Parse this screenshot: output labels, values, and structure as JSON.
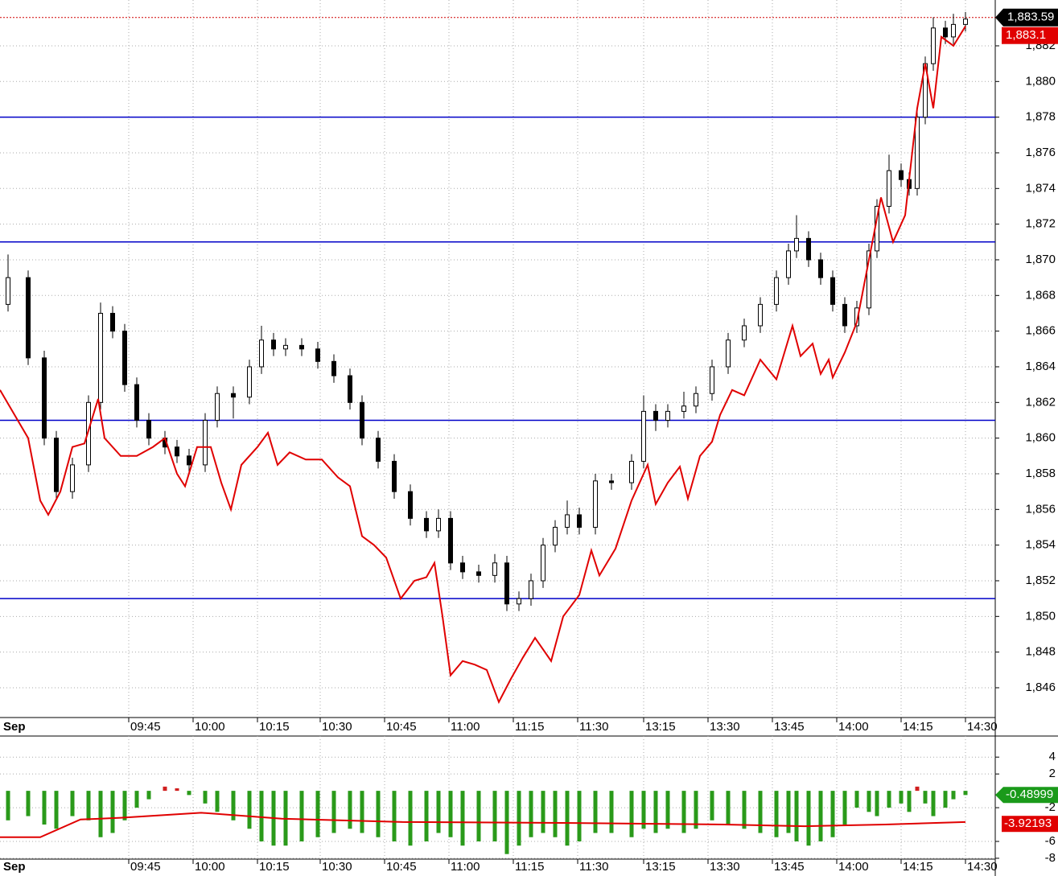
{
  "chart_data": [
    {
      "type": "candlestick",
      "date_label": "Sep",
      "x": [
        2,
        7,
        11,
        14,
        18,
        22,
        25,
        28,
        31,
        34,
        37,
        41,
        44,
        47,
        51,
        54,
        58,
        62,
        65,
        68,
        71,
        75,
        79,
        83,
        87,
        90,
        94,
        98,
        102,
        106,
        109,
        112,
        115,
        119,
        123,
        126,
        129,
        132,
        135,
        138,
        141,
        144,
        148,
        152,
        157,
        160,
        163,
        166,
        170,
        173,
        177,
        181,
        185,
        189,
        193,
        196,
        198,
        201,
        204,
        207,
        210,
        213,
        216,
        218,
        221,
        224,
        226,
        228,
        230,
        232,
        235,
        237,
        240
      ],
      "open": [
        1867.5,
        1869,
        1864.5,
        1860,
        1857,
        1858.5,
        1862,
        1867,
        1866,
        1863,
        1861,
        1860,
        1859.5,
        1859,
        1858.5,
        1861,
        1862.5,
        1862.3,
        1864,
        1865.5,
        1865,
        1865.2,
        1865,
        1864.3,
        1863.5,
        1862,
        1860,
        1858.7,
        1857,
        1855.5,
        1854.8,
        1855.5,
        1853,
        1852.5,
        1852.3,
        1853,
        1850.7,
        1851,
        1852,
        1854,
        1855,
        1855.7,
        1855,
        1857.6,
        1857.5,
        1858.7,
        1861.5,
        1861,
        1861.5,
        1861.8,
        1862.5,
        1864,
        1865.5,
        1866.3,
        1867.5,
        1869,
        1870.5,
        1871.2,
        1870,
        1869,
        1867.5,
        1866.3,
        1867.3,
        1870.5,
        1873,
        1875,
        1874.5,
        1874,
        1878,
        1881,
        1883,
        1882.5,
        1883.2
      ],
      "high": [
        1870.3,
        1869.4,
        1864.9,
        1860.4,
        1858.9,
        1862.4,
        1867.6,
        1867.4,
        1866.4,
        1863.4,
        1861.4,
        1860.4,
        1859.9,
        1859.4,
        1861.4,
        1862.9,
        1862.9,
        1864.4,
        1866.3,
        1865.9,
        1865.6,
        1865.6,
        1865.4,
        1864.7,
        1863.9,
        1862.4,
        1860.4,
        1859.1,
        1857.4,
        1855.9,
        1856,
        1855.9,
        1853.4,
        1852.9,
        1853.5,
        1853.4,
        1851.4,
        1852.4,
        1854.4,
        1855.4,
        1856.5,
        1856.1,
        1858,
        1858,
        1859.1,
        1862.4,
        1861.9,
        1861.9,
        1862.6,
        1862.9,
        1864.4,
        1865.9,
        1866.7,
        1867.9,
        1869.4,
        1870.9,
        1872.5,
        1871.6,
        1870.4,
        1869.4,
        1867.9,
        1867.7,
        1870.9,
        1873.4,
        1875.9,
        1875.4,
        1874.9,
        1878.4,
        1881.4,
        1883.6,
        1883.4,
        1883.8,
        1883.9
      ],
      "low": [
        1867.1,
        1864.1,
        1859.6,
        1856.6,
        1856.6,
        1858.1,
        1861.6,
        1865.6,
        1862.6,
        1860.6,
        1859.6,
        1859.1,
        1858.6,
        1858.1,
        1858.1,
        1860.6,
        1861.1,
        1861.9,
        1863.6,
        1864.6,
        1864.6,
        1864.6,
        1863.9,
        1863.1,
        1861.6,
        1859.6,
        1858.3,
        1856.6,
        1855.1,
        1854.4,
        1854.4,
        1852.6,
        1852.1,
        1851.9,
        1851.9,
        1850.3,
        1850.3,
        1850.6,
        1851.6,
        1853.6,
        1854.6,
        1854.6,
        1854.6,
        1857.1,
        1857.1,
        1858.3,
        1860.4,
        1860.6,
        1861.1,
        1861.4,
        1862.1,
        1863.6,
        1865.1,
        1865.9,
        1867.1,
        1868.6,
        1870.1,
        1869.6,
        1868.6,
        1867.1,
        1865.9,
        1865.9,
        1866.9,
        1870.1,
        1872.6,
        1874.1,
        1873.6,
        1873.6,
        1877.6,
        1880.6,
        1882.1,
        1882.1,
        1882.8
      ],
      "close": [
        1869,
        1864.5,
        1860,
        1857,
        1858.5,
        1862,
        1867,
        1866,
        1863,
        1861,
        1860,
        1859.5,
        1859,
        1858.5,
        1861,
        1862.5,
        1862.3,
        1864,
        1865.5,
        1865,
        1865.2,
        1865,
        1864.3,
        1863.5,
        1862,
        1860,
        1858.7,
        1857,
        1855.5,
        1854.8,
        1855.5,
        1853,
        1852.5,
        1852.3,
        1853,
        1850.7,
        1851,
        1852,
        1854,
        1855,
        1855.7,
        1855,
        1857.6,
        1857.5,
        1858.7,
        1861.5,
        1861,
        1861.5,
        1861.8,
        1862.5,
        1864,
        1865.5,
        1866.3,
        1867.5,
        1869,
        1870.5,
        1871.2,
        1870,
        1869,
        1867.5,
        1866.3,
        1867.3,
        1870.5,
        1873,
        1875,
        1874.5,
        1874,
        1878,
        1881,
        1883,
        1882.5,
        1883.2,
        1883.5
      ],
      "up_color": "#ffffff",
      "down_color": "#000000",
      "line": {
        "color": "#e00000",
        "x": [
          0,
          7,
          10,
          12,
          15,
          18,
          21,
          24.4,
          26,
          30,
          34,
          38,
          41,
          44,
          46,
          49,
          52.4,
          55,
          57.4,
          60,
          64,
          66.6,
          69,
          72,
          76,
          80,
          84,
          87,
          90,
          93,
          96,
          99.6,
          103,
          106,
          108,
          110,
          112,
          115,
          118,
          121,
          124,
          127,
          130,
          133,
          137,
          140,
          144,
          147,
          149,
          153,
          157,
          161,
          163,
          166,
          169,
          171,
          174,
          177,
          179,
          182,
          185,
          189,
          193,
          197,
          199,
          202,
          204,
          206,
          207,
          210,
          213,
          216,
          219,
          222,
          225,
          228,
          230,
          232,
          234,
          237,
          240
        ],
        "values": [
          1862.7,
          1860,
          1856.5,
          1855.7,
          1857,
          1859.5,
          1859.7,
          1862.2,
          1860,
          1859,
          1859,
          1859.5,
          1860,
          1858,
          1857.3,
          1859.5,
          1859.5,
          1857.5,
          1856,
          1858.5,
          1859.5,
          1860.3,
          1858.5,
          1859.2,
          1858.8,
          1858.8,
          1857.8,
          1857.3,
          1854.5,
          1854,
          1853.3,
          1851,
          1852,
          1852.2,
          1853,
          1850,
          1846.7,
          1847.5,
          1847.3,
          1847,
          1845.2,
          1846.5,
          1847.7,
          1848.8,
          1847.5,
          1850,
          1851.2,
          1853.7,
          1852.3,
          1853.8,
          1856.5,
          1858.5,
          1856.3,
          1857.5,
          1858.4,
          1856.6,
          1859,
          1859.8,
          1861.3,
          1862.7,
          1862.4,
          1864.4,
          1863.3,
          1866.3,
          1864.6,
          1865.3,
          1863.6,
          1864.4,
          1863.4,
          1864.8,
          1866.5,
          1870,
          1873.5,
          1871,
          1872.5,
          1878.5,
          1881,
          1878.5,
          1882.5,
          1882,
          1883.1
        ]
      },
      "hlines": {
        "color": "#0000c8",
        "values": [
          1878,
          1871,
          1861,
          1851
        ]
      },
      "last_price": {
        "value": 1883.59,
        "label": "1,883.59"
      },
      "line_last": {
        "value": 1883.1,
        "label": "1,883.1"
      },
      "xlim": [
        0,
        247.4
      ],
      "ylim": [
        1844.33,
        1884.57
      ],
      "yticks": [
        {
          "value": 1846,
          "label": "1,846"
        },
        {
          "value": 1848,
          "label": "1,848"
        },
        {
          "value": 1850,
          "label": "1,850"
        },
        {
          "value": 1852,
          "label": "1,852"
        },
        {
          "value": 1854,
          "label": "1,854"
        },
        {
          "value": 1856,
          "label": "1,856"
        },
        {
          "value": 1858,
          "label": "1,858"
        },
        {
          "value": 1860,
          "label": "1,860"
        },
        {
          "value": 1862,
          "label": "1,862"
        },
        {
          "value": 1864,
          "label": "1,864"
        },
        {
          "value": 1866,
          "label": "1,866"
        },
        {
          "value": 1868,
          "label": "1,868"
        },
        {
          "value": 1870,
          "label": "1,870"
        },
        {
          "value": 1872,
          "label": "1,872"
        },
        {
          "value": 1874,
          "label": "1,874"
        },
        {
          "value": 1876,
          "label": "1,876"
        },
        {
          "value": 1878,
          "label": "1,878"
        },
        {
          "value": 1880,
          "label": "1,880"
        },
        {
          "value": 1882,
          "label": "1,882"
        }
      ],
      "xticks": [
        {
          "value": 32,
          "label": "09:45"
        },
        {
          "value": 48,
          "label": "10:00"
        },
        {
          "value": 64,
          "label": "10:15"
        },
        {
          "value": 79.6,
          "label": "10:30"
        },
        {
          "value": 95.6,
          "label": "10:45"
        },
        {
          "value": 111.6,
          "label": "11:00"
        },
        {
          "value": 127.6,
          "label": "11:15"
        },
        {
          "value": 143.6,
          "label": "11:30"
        },
        {
          "value": 160,
          "label": "13:15"
        },
        {
          "value": 176,
          "label": "13:30"
        },
        {
          "value": 192,
          "label": "13:45"
        },
        {
          "value": 208,
          "label": "14:00"
        },
        {
          "value": 224,
          "label": "14:15"
        },
        {
          "value": 240,
          "label": "14:30"
        }
      ],
      "grid": true
    },
    {
      "type": "histogram",
      "date_label": "Sep",
      "x": [
        2,
        7,
        11,
        14,
        18,
        22,
        25,
        28,
        31,
        34,
        37,
        41,
        44,
        47,
        51,
        54,
        58,
        62,
        65,
        68,
        71,
        75,
        79,
        83,
        87,
        90,
        94,
        98,
        102,
        106,
        109,
        112,
        115,
        119,
        123,
        126,
        129,
        132,
        135,
        138,
        141,
        144,
        148,
        152,
        157,
        160,
        163,
        166,
        170,
        173,
        177,
        181,
        185,
        189,
        193,
        196,
        198,
        201,
        204,
        207,
        210,
        213,
        216,
        218,
        221,
        224,
        226,
        228,
        230,
        232,
        235,
        237,
        240
      ],
      "values": [
        -3.5,
        -3,
        -4,
        -4.5,
        -3,
        -3.5,
        -5.5,
        -5,
        -3.5,
        -2,
        -1,
        0.5,
        0.3,
        -0.5,
        -1.5,
        -2.5,
        -3.5,
        -4.5,
        -6,
        -6.5,
        -6.5,
        -6,
        -5.5,
        -5,
        -4.5,
        -5,
        -5.5,
        -6,
        -6.5,
        -6,
        -5,
        -5.5,
        -6.5,
        -6,
        -6,
        -7.5,
        -6.5,
        -5.5,
        -5,
        -5.5,
        -6.5,
        -6,
        -5,
        -5,
        -5.5,
        -4.5,
        -5,
        -4.5,
        -5,
        -4.5,
        -3.5,
        -4,
        -4.5,
        -5,
        -5.5,
        -5,
        -6,
        -6.5,
        -6,
        -5.5,
        -4,
        -2,
        -2.5,
        -3,
        -2,
        -1.5,
        -2.5,
        0.5,
        -1.5,
        -3,
        -2,
        -1,
        -0.5
      ],
      "pos_color": "#d02020",
      "neg_color": "#2a9a1a",
      "signal": {
        "color": "#e00000",
        "x": [
          0,
          10,
          20,
          30,
          50,
          70,
          100,
          140,
          180,
          200,
          220,
          240
        ],
        "values": [
          -5.5,
          -5.5,
          -3.4,
          -3.2,
          -2.6,
          -3.3,
          -3.7,
          -3.8,
          -4,
          -4.2,
          -4,
          -3.7
        ]
      },
      "last_value": -0.48999,
      "signal_last": -3.92193,
      "xlim": [
        0,
        247.4
      ],
      "ylim": [
        -8.1,
        6.5
      ],
      "yticks": [
        4,
        2,
        -2,
        -6,
        -8
      ],
      "xticks": [
        {
          "value": 32,
          "label": "09:45"
        },
        {
          "value": 48,
          "label": "10:00"
        },
        {
          "value": 64,
          "label": "10:15"
        },
        {
          "value": 79.6,
          "label": "10:30"
        },
        {
          "value": 95.6,
          "label": "10:45"
        },
        {
          "value": 111.6,
          "label": "11:00"
        },
        {
          "value": 127.6,
          "label": "11:15"
        },
        {
          "value": 143.6,
          "label": "11:30"
        },
        {
          "value": 160,
          "label": "13:15"
        },
        {
          "value": 176,
          "label": "13:30"
        },
        {
          "value": 192,
          "label": "13:45"
        },
        {
          "value": 208,
          "label": "14:00"
        },
        {
          "value": 224,
          "label": "14:15"
        },
        {
          "value": 240,
          "label": "14:30"
        }
      ],
      "grid": true
    }
  ]
}
